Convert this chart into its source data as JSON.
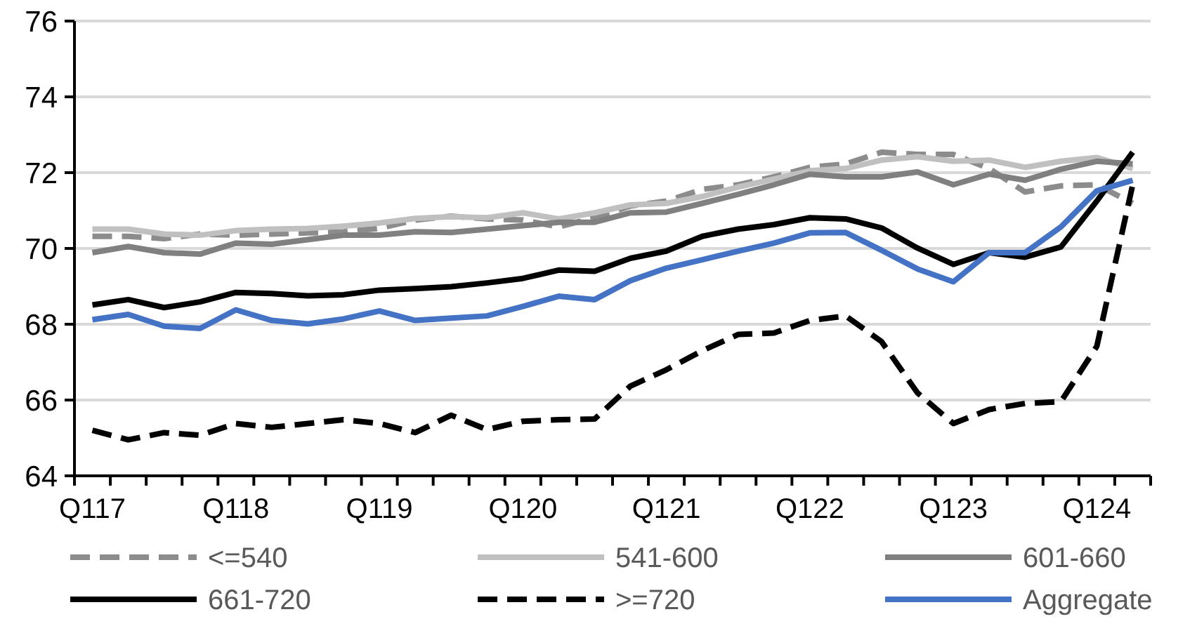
{
  "chart_data": {
    "type": "line",
    "categories": [
      "Q117",
      null,
      null,
      null,
      "Q118",
      null,
      null,
      null,
      "Q119",
      null,
      null,
      null,
      "Q120",
      null,
      null,
      null,
      "Q121",
      null,
      null,
      null,
      "Q122",
      null,
      null,
      null,
      "Q123",
      null,
      null,
      null,
      "Q124",
      null
    ],
    "ylim": [
      64,
      76
    ],
    "yticks": [
      64,
      66,
      68,
      70,
      72,
      74,
      76
    ],
    "grid": "y",
    "legend": "bottom",
    "line_style": "solid",
    "series": [
      {
        "name": "<=540",
        "color": "#8c8c8c",
        "line_style": "dashed",
        "values": [
          70.32,
          70.32,
          70.26,
          70.38,
          70.35,
          70.38,
          70.41,
          70.44,
          70.53,
          70.75,
          70.85,
          70.78,
          70.75,
          70.57,
          70.81,
          71.12,
          71.25,
          71.56,
          71.68,
          71.89,
          72.14,
          72.23,
          72.54,
          72.48,
          72.48,
          72.11,
          71.49,
          71.65,
          71.68,
          71.19
        ]
      },
      {
        "name": "541-600",
        "color": "#c0c0c0",
        "values": [
          70.51,
          70.51,
          70.38,
          70.35,
          70.47,
          70.51,
          70.53,
          70.59,
          70.67,
          70.79,
          70.84,
          70.81,
          70.94,
          70.78,
          70.94,
          71.15,
          71.19,
          71.37,
          71.62,
          71.83,
          72.05,
          72.11,
          72.33,
          72.42,
          72.3,
          72.33,
          72.14,
          72.3,
          72.4,
          72.11
        ]
      },
      {
        "name": "601-660",
        "color": "#808080",
        "values": [
          69.89,
          70.05,
          69.89,
          69.85,
          70.14,
          70.11,
          70.23,
          70.35,
          70.35,
          70.44,
          70.42,
          70.51,
          70.6,
          70.69,
          70.69,
          70.94,
          70.96,
          71.19,
          71.43,
          71.68,
          71.96,
          71.89,
          71.89,
          72.02,
          71.68,
          71.96,
          71.8,
          72.09,
          72.3,
          72.23
        ]
      },
      {
        "name": "661-720",
        "color": "#000000",
        "values": [
          68.51,
          68.65,
          68.44,
          68.59,
          68.84,
          68.81,
          68.75,
          68.78,
          68.9,
          68.94,
          68.99,
          69.09,
          69.21,
          69.43,
          69.4,
          69.74,
          69.93,
          70.32,
          70.51,
          70.63,
          70.81,
          70.78,
          70.54,
          70.01,
          69.58,
          69.89,
          69.77,
          70.04,
          71.25,
          72.54
        ]
      },
      {
        "name": ">=720",
        "color": "#000000",
        "line_style": "dashed",
        "values": [
          65.2,
          64.95,
          65.14,
          65.07,
          65.38,
          65.28,
          65.38,
          65.48,
          65.38,
          65.14,
          65.6,
          65.22,
          65.44,
          65.48,
          65.5,
          66.37,
          66.8,
          67.3,
          67.73,
          67.77,
          68.1,
          68.22,
          67.54,
          66.19,
          65.38,
          65.75,
          65.91,
          65.96,
          67.42,
          71.68
        ]
      },
      {
        "name": "Aggregate",
        "color": "#4472c4",
        "values": [
          68.12,
          68.26,
          67.95,
          67.89,
          68.38,
          68.1,
          68.01,
          68.14,
          68.35,
          68.1,
          68.16,
          68.22,
          68.47,
          68.74,
          68.65,
          69.15,
          69.48,
          69.7,
          69.93,
          70.14,
          70.41,
          70.42,
          69.95,
          69.46,
          69.12,
          69.89,
          69.89,
          70.57,
          71.52,
          71.8
        ]
      }
    ]
  }
}
